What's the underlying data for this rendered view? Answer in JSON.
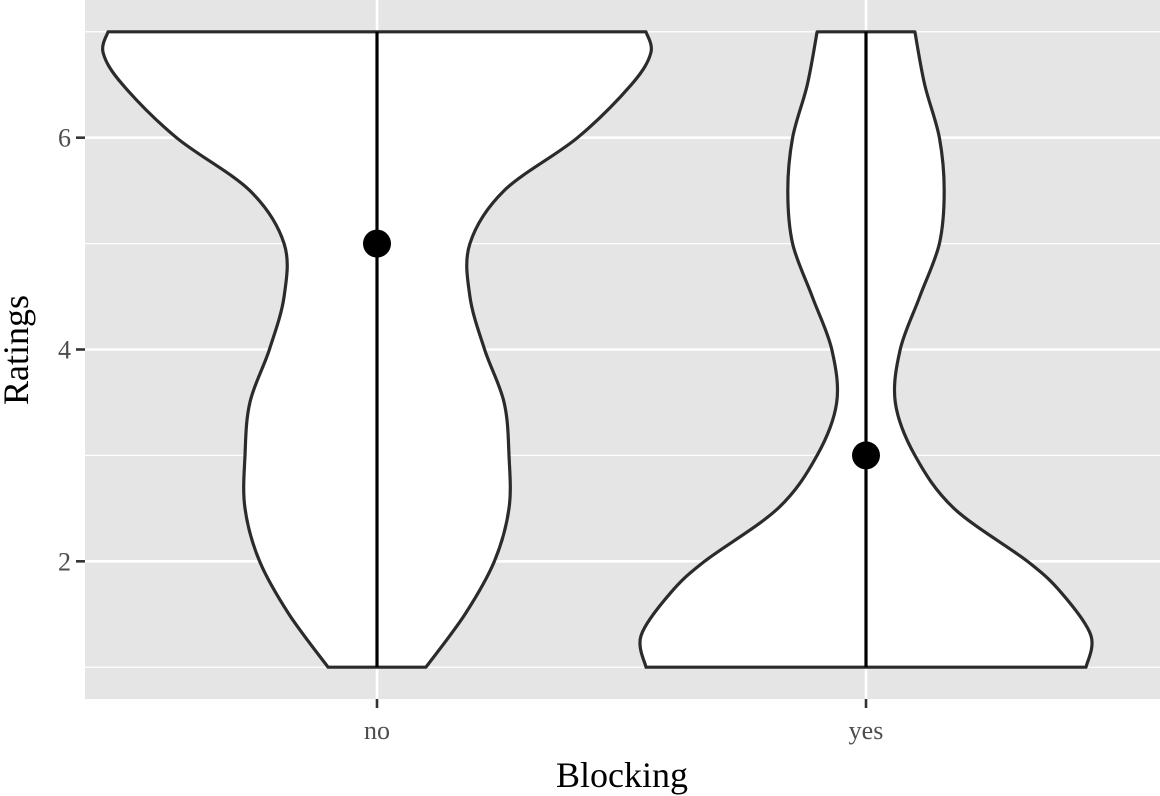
{
  "chart_data": {
    "type": "violin",
    "title": "",
    "xlabel": "Blocking",
    "ylabel": "Ratings",
    "ylim": [
      0.7,
      7.3
    ],
    "yticks": [
      2,
      4,
      6
    ],
    "ytick_labels": [
      "2",
      "4",
      "6"
    ],
    "categories": [
      "no",
      "yes"
    ],
    "grid": true,
    "legend": "none",
    "colors": {
      "panel": "#e5e5e5",
      "grid": "#ffffff",
      "violin_fill": "#ffffff",
      "violin_stroke": "#2b2b2b",
      "point": "#000000"
    },
    "series": [
      {
        "category": "no",
        "range": [
          1,
          7
        ],
        "median_point": 5,
        "density_profile": [
          {
            "y": 1.0,
            "w": 0.1
          },
          {
            "y": 1.5,
            "w": 0.18
          },
          {
            "y": 2.0,
            "w": 0.24
          },
          {
            "y": 2.5,
            "w": 0.27
          },
          {
            "y": 3.0,
            "w": 0.27
          },
          {
            "y": 3.5,
            "w": 0.26
          },
          {
            "y": 4.0,
            "w": 0.22
          },
          {
            "y": 4.5,
            "w": 0.19
          },
          {
            "y": 5.0,
            "w": 0.19
          },
          {
            "y": 5.5,
            "w": 0.26
          },
          {
            "y": 6.0,
            "w": 0.41
          },
          {
            "y": 6.5,
            "w": 0.52
          },
          {
            "y": 6.8,
            "w": 0.56
          },
          {
            "y": 7.0,
            "w": 0.55
          }
        ]
      },
      {
        "category": "yes",
        "range": [
          1,
          7
        ],
        "median_point": 3,
        "density_profile": [
          {
            "y": 1.0,
            "w": 0.45
          },
          {
            "y": 1.3,
            "w": 0.46
          },
          {
            "y": 1.7,
            "w": 0.4
          },
          {
            "y": 2.0,
            "w": 0.33
          },
          {
            "y": 2.5,
            "w": 0.18
          },
          {
            "y": 3.0,
            "w": 0.1
          },
          {
            "y": 3.5,
            "w": 0.06
          },
          {
            "y": 4.0,
            "w": 0.07
          },
          {
            "y": 4.5,
            "w": 0.11
          },
          {
            "y": 5.0,
            "w": 0.15
          },
          {
            "y": 5.5,
            "w": 0.16
          },
          {
            "y": 6.0,
            "w": 0.15
          },
          {
            "y": 6.5,
            "w": 0.12
          },
          {
            "y": 7.0,
            "w": 0.1
          }
        ]
      }
    ]
  }
}
